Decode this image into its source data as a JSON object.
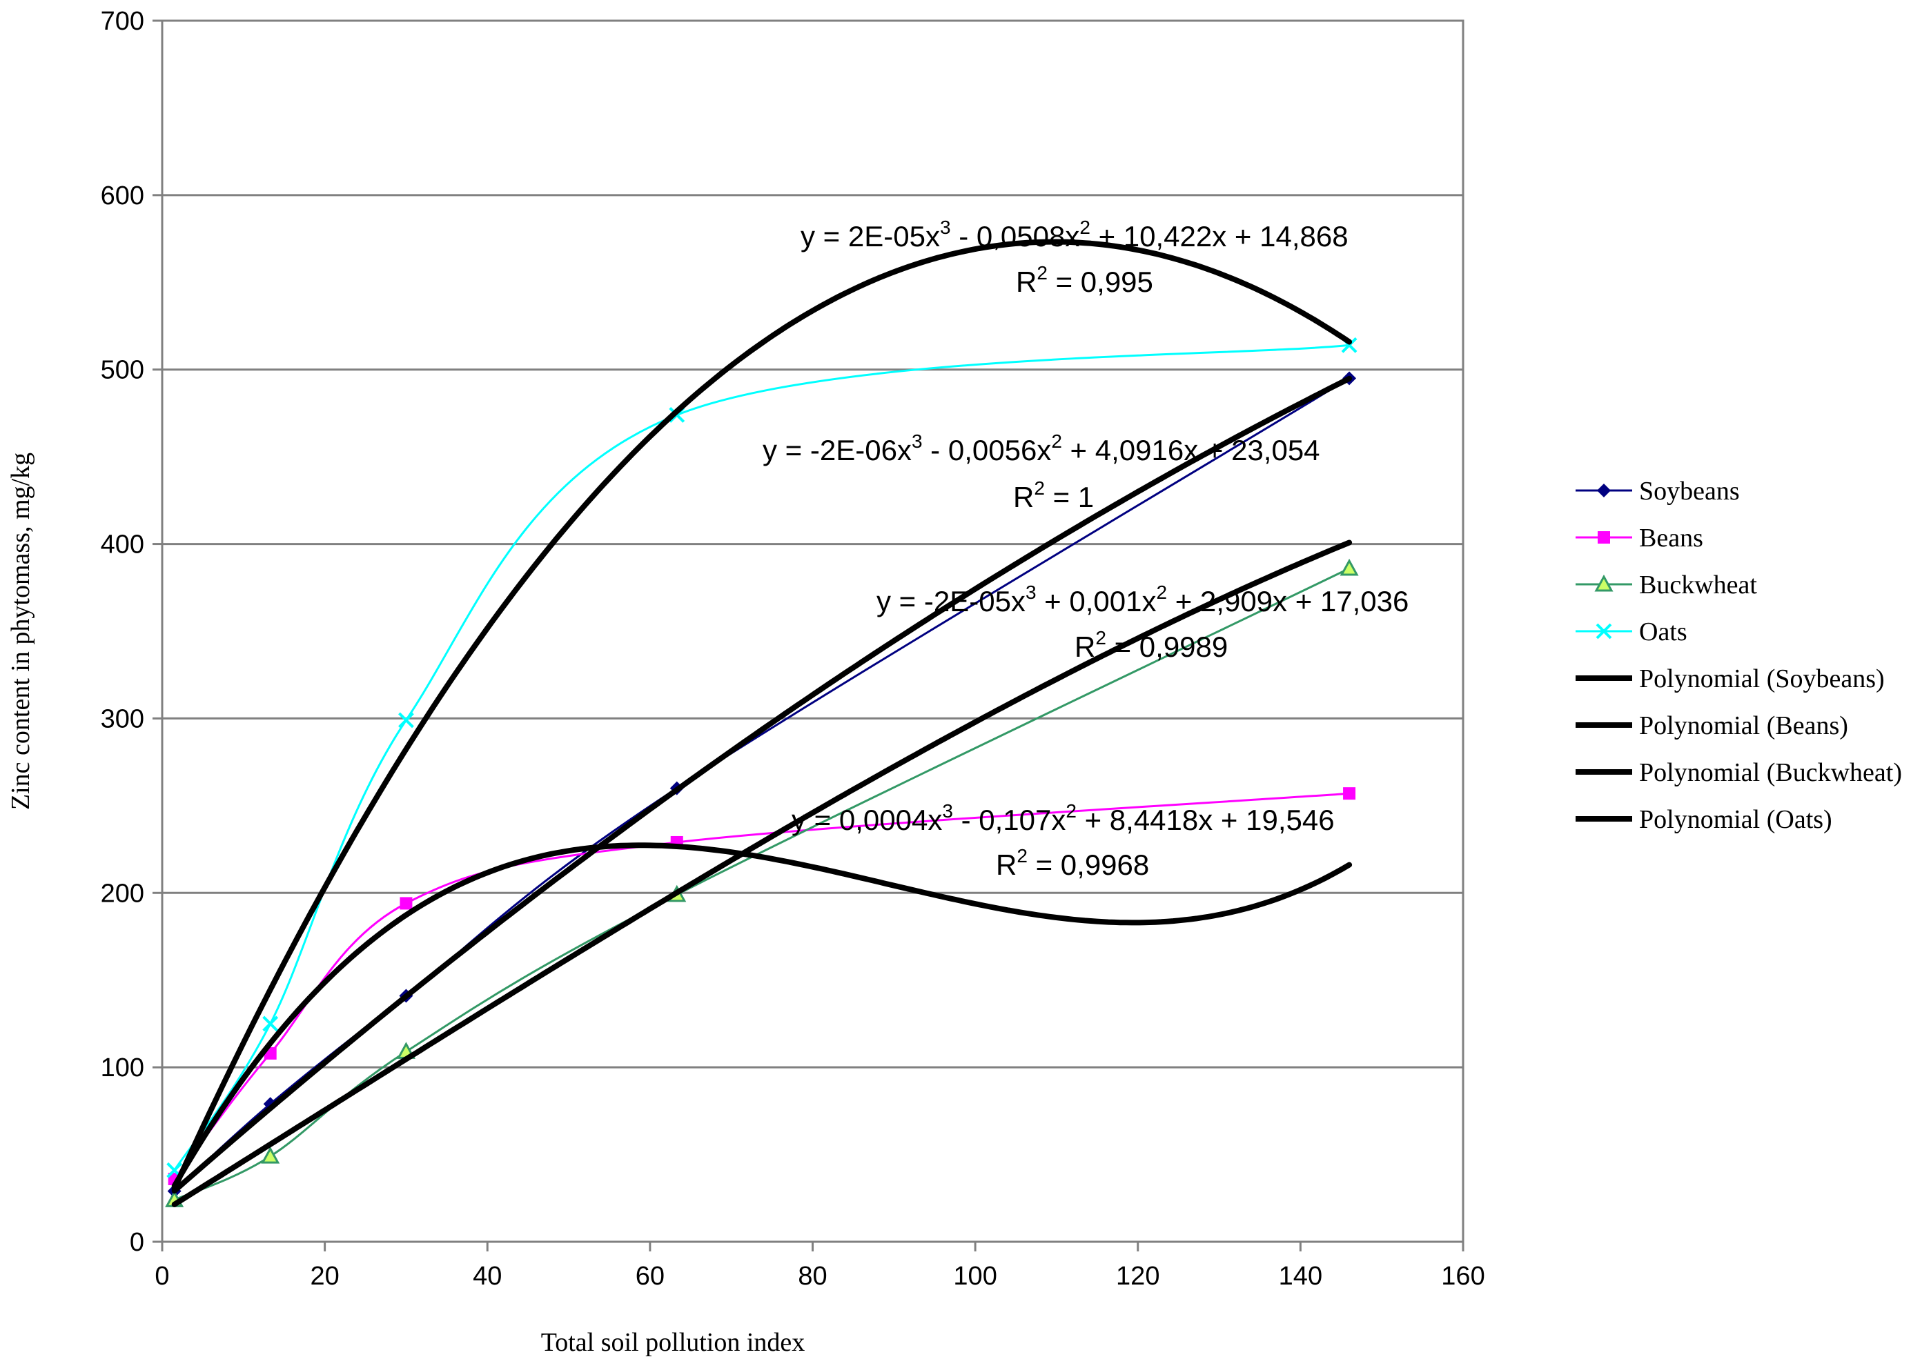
{
  "chart_data": {
    "type": "scatter",
    "xlabel": "Total soil pollution index",
    "ylabel": "Zinc content in phytomass, mg/kg",
    "xlim": [
      0,
      160
    ],
    "ylim": [
      0,
      700
    ],
    "x_ticks": [
      "0",
      "20",
      "40",
      "60",
      "80",
      "100",
      "120",
      "140",
      "160"
    ],
    "y_ticks": [
      "0",
      "100",
      "200",
      "300",
      "400",
      "500",
      "600",
      "700"
    ],
    "grid": "horizontal",
    "legend_position": "right",
    "x": [
      1.5,
      13.3,
      30,
      63.3,
      146
    ],
    "series": [
      {
        "name": "Soybeans",
        "color": "#000080",
        "marker": "diamond",
        "values": [
          29,
          79,
          141,
          260,
          495
        ]
      },
      {
        "name": "Beans",
        "color": "#FF00FF",
        "marker": "square",
        "values": [
          36,
          108,
          194,
          229,
          257
        ]
      },
      {
        "name": "Buckwheat",
        "color": "#339966",
        "marker": "triangle",
        "values": [
          24,
          49,
          109,
          199,
          386
        ]
      },
      {
        "name": "Oats",
        "color": "#00FFFF",
        "marker": "x",
        "values": [
          41,
          125,
          299,
          474,
          514
        ]
      }
    ],
    "trendlines": [
      {
        "name": "Polynomial (Soybeans)",
        "color": "#000000",
        "coef": [
          23.054,
          4.0916,
          -0.0056,
          -2e-06
        ]
      },
      {
        "name": "Polynomial (Beans)",
        "color": "#000000",
        "coef": [
          19.546,
          8.4418,
          -0.107,
          0.0004
        ]
      },
      {
        "name": "Polynomial (Buckwheat)",
        "color": "#000000",
        "coef": [
          17.036,
          2.909,
          0.001,
          -2e-05
        ]
      },
      {
        "name": "Polynomial (Oats)",
        "color": "#000000",
        "coef": [
          14.868,
          10.422,
          -0.0508,
          2e-05
        ]
      }
    ],
    "annotations": [
      {
        "eq_prefix": "y = 2E-05x",
        "p1": "3",
        "eq_mid": " - 0,0508x",
        "p2": "2",
        "eq_suffix": " + 10,422x + 14,868",
        "r2_label": "R",
        "r2_exp": "2",
        "r2_value": " = 0,995"
      },
      {
        "eq_prefix": "y = -2E-06x",
        "p1": "3",
        "eq_mid": " - 0,0056x",
        "p2": "2",
        "eq_suffix": " + 4,0916x + 23,054",
        "r2_label": "R",
        "r2_exp": "2",
        "r2_value": " = 1"
      },
      {
        "eq_prefix": "y = -2E-05x",
        "p1": "3",
        "eq_mid": " + 0,001x",
        "p2": "2",
        "eq_suffix": " + 2,909x + 17,036",
        "r2_label": "R",
        "r2_exp": "2",
        "r2_value": " = 0,9989"
      },
      {
        "eq_prefix": "y = 0,0004x",
        "p1": "3",
        "eq_mid": " - 0,107x",
        "p2": "2",
        "eq_suffix": " + 8,4418x + 19,546",
        "r2_label": "R",
        "r2_exp": "2",
        "r2_value": " = 0,9968"
      }
    ]
  }
}
